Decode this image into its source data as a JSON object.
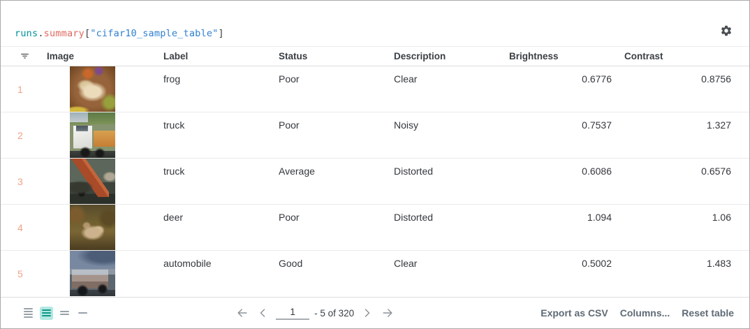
{
  "panel": {
    "title_tokens": [
      {
        "text": "runs",
        "color": "#00939e"
      },
      {
        "text": ".",
        "color": "#3a3d40"
      },
      {
        "text": "summary",
        "color": "#e0695f"
      },
      {
        "text": "[",
        "color": "#3a3d40"
      },
      {
        "text": "\"cifar10_sample_table\"",
        "color": "#2f7fd1"
      },
      {
        "text": "]",
        "color": "#3a3d40"
      }
    ]
  },
  "table": {
    "columns": [
      "Image",
      "Label",
      "Status",
      "Description",
      "Brightness",
      "Contrast"
    ],
    "rows": [
      {
        "index": "1",
        "image_subject": "frog",
        "label": "frog",
        "status": "Poor",
        "description": "Clear",
        "brightness": "0.6776",
        "contrast": "0.8756"
      },
      {
        "index": "2",
        "image_subject": "truck",
        "label": "truck",
        "status": "Poor",
        "description": "Noisy",
        "brightness": "0.7537",
        "contrast": "1.327"
      },
      {
        "index": "3",
        "image_subject": "truck",
        "label": "truck",
        "status": "Average",
        "description": "Distorted",
        "brightness": "0.6086",
        "contrast": "0.6576"
      },
      {
        "index": "4",
        "image_subject": "deer",
        "label": "deer",
        "status": "Poor",
        "description": "Distorted",
        "brightness": "1.094",
        "contrast": "1.06"
      },
      {
        "index": "5",
        "image_subject": "automobile",
        "label": "automobile",
        "status": "Good",
        "description": "Clear",
        "brightness": "0.5002",
        "contrast": "1.483"
      }
    ]
  },
  "footer": {
    "density_options": [
      {
        "name": "row-height-small",
        "lines": 4,
        "selected": false
      },
      {
        "name": "row-height-medium",
        "lines": 3,
        "selected": true
      },
      {
        "name": "row-height-large",
        "lines": 2,
        "selected": false
      },
      {
        "name": "row-height-xlarge",
        "lines": 1,
        "selected": false
      }
    ],
    "pagination": {
      "page_value": "1",
      "range_text": "- 5 of 320"
    },
    "buttons": [
      {
        "label": "Export as CSV"
      },
      {
        "label": "Columns..."
      },
      {
        "label": "Reset table"
      }
    ],
    "colors": {
      "row_index": "#f2a285",
      "density_selected_bg": "#b2e7e0",
      "density_selected_fg": "#0e9888"
    }
  }
}
